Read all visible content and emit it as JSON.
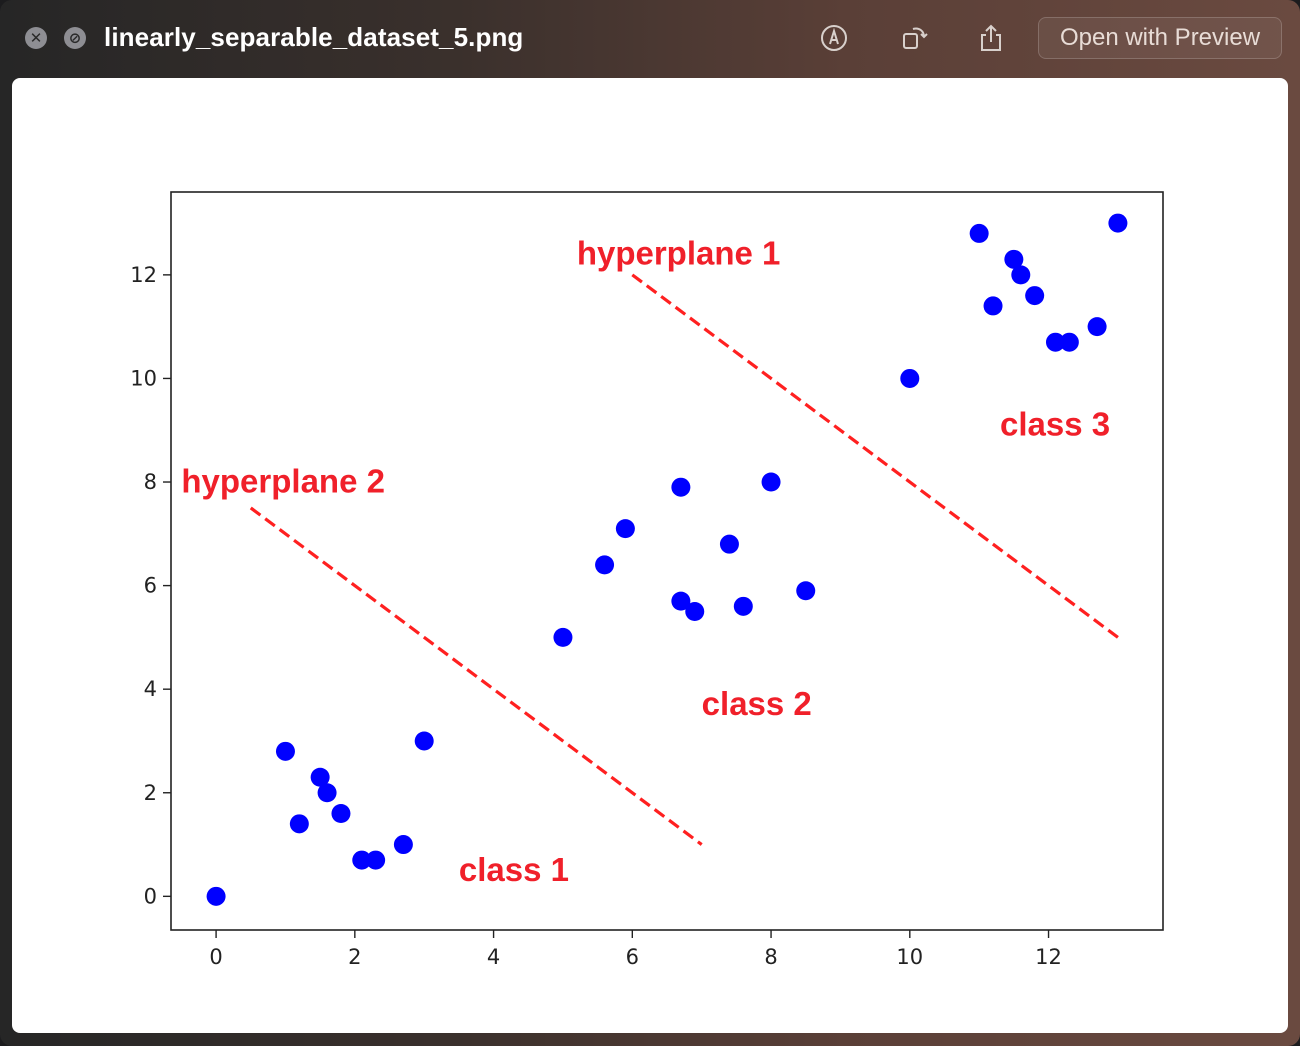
{
  "window": {
    "title": "linearly_separable_dataset_5.png",
    "open_with_preview_label": "Open with Preview"
  },
  "icons": {
    "close": "close-icon",
    "disabled": "minimize-disabled-icon",
    "markup": "markup-pen-icon",
    "rotate": "rotate-icon",
    "share": "share-icon"
  },
  "chart_data": {
    "type": "scatter",
    "xlim": [
      -0.65,
      13.65
    ],
    "ylim": [
      -0.65,
      13.6
    ],
    "xticks": [
      0,
      2,
      4,
      6,
      8,
      10,
      12
    ],
    "yticks": [
      0,
      2,
      4,
      6,
      8,
      10,
      12
    ],
    "point_color": "#0000ff",
    "line_color": "#ff2020",
    "points": [
      [
        0,
        0
      ],
      [
        1,
        2.8
      ],
      [
        1.2,
        1.4
      ],
      [
        1.5,
        2.3
      ],
      [
        1.6,
        2.0
      ],
      [
        1.8,
        1.6
      ],
      [
        2.1,
        0.7
      ],
      [
        2.3,
        0.7
      ],
      [
        2.7,
        1.0
      ],
      [
        3.0,
        3.0
      ],
      [
        5.0,
        5.0
      ],
      [
        5.6,
        6.4
      ],
      [
        5.9,
        7.1
      ],
      [
        6.7,
        7.9
      ],
      [
        6.7,
        5.7
      ],
      [
        6.9,
        5.5
      ],
      [
        7.4,
        6.8
      ],
      [
        7.6,
        5.6
      ],
      [
        8.0,
        8.0
      ],
      [
        8.5,
        5.9
      ],
      [
        10.0,
        10.0
      ],
      [
        11.0,
        12.8
      ],
      [
        11.2,
        11.4
      ],
      [
        11.5,
        12.3
      ],
      [
        11.6,
        12.0
      ],
      [
        11.8,
        11.6
      ],
      [
        12.1,
        10.7
      ],
      [
        12.3,
        10.7
      ],
      [
        12.7,
        11.0
      ],
      [
        13.0,
        13.0
      ]
    ],
    "lines": [
      {
        "from": [
          0.5,
          7.5
        ],
        "to": [
          7.0,
          1.0
        ]
      },
      {
        "from": [
          6.0,
          12.0
        ],
        "to": [
          13.0,
          5.0
        ]
      }
    ],
    "annotations": [
      {
        "text": "hyperplane 1",
        "at": [
          5.2,
          12.2
        ]
      },
      {
        "text": "hyperplane 2",
        "at": [
          -0.5,
          7.8
        ]
      },
      {
        "text": "class 1",
        "at": [
          3.5,
          0.3
        ]
      },
      {
        "text": "class 2",
        "at": [
          7.0,
          3.5
        ]
      },
      {
        "text": "class 3",
        "at": [
          11.3,
          8.9
        ]
      }
    ]
  }
}
